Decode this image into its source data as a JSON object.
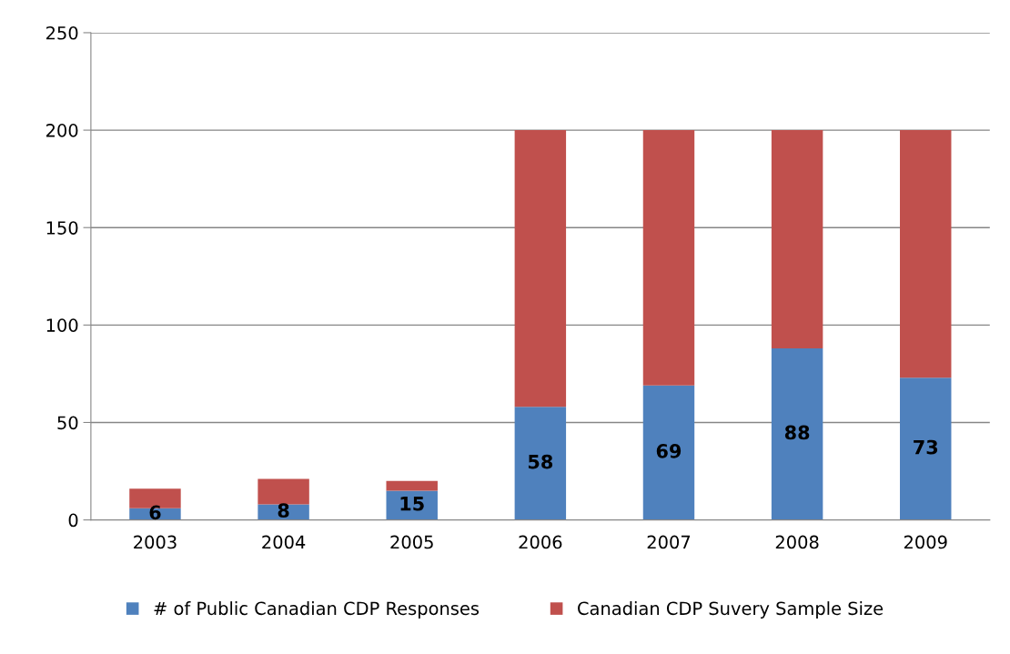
{
  "chart_data": {
    "type": "bar",
    "stacked": true,
    "categories": [
      "2003",
      "2004",
      "2005",
      "2006",
      "2007",
      "2008",
      "2009"
    ],
    "series": [
      {
        "name": "# of Public Canadian CDP Responses",
        "color": "#4f81bd",
        "values": [
          6,
          8,
          15,
          58,
          69,
          88,
          73
        ],
        "value_labels": [
          "6",
          "8",
          "15",
          "58",
          "69",
          "88",
          "73"
        ]
      },
      {
        "name": "Canadian CDP Suvery Sample Size",
        "color": "#c0504d",
        "values": [
          10,
          13,
          5,
          142,
          131,
          112,
          127
        ]
      }
    ],
    "ylim": [
      0,
      250
    ],
    "yticks": [
      0,
      50,
      100,
      150,
      200,
      250
    ],
    "grid": "y",
    "legend": "bottom"
  }
}
